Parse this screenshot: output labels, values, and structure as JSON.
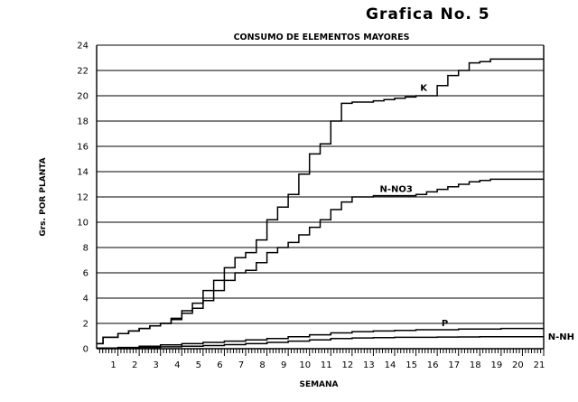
{
  "page_title": "Grafica No. 5",
  "chart_data": {
    "type": "line",
    "title": "CONSUMO DE ELEMENTOS MAYORES",
    "xlabel": "SEMANA",
    "ylabel": "Grs. POR PLANTA",
    "xlim": [
      0,
      21
    ],
    "ylim": [
      0,
      24
    ],
    "x_ticks": [
      1,
      2,
      3,
      4,
      5,
      6,
      7,
      8,
      9,
      10,
      11,
      12,
      13,
      14,
      15,
      16,
      17,
      18,
      19,
      20,
      21
    ],
    "y_ticks": [
      0,
      2,
      4,
      6,
      8,
      10,
      12,
      14,
      16,
      18,
      20,
      22,
      24
    ],
    "grid": "horizontal",
    "legend": "labels on lines",
    "series": [
      {
        "name": "K",
        "x": [
          0,
          0.3,
          0.5,
          1,
          1.5,
          2,
          2.5,
          3,
          3.5,
          4,
          4.5,
          5,
          5.5,
          6,
          6.5,
          7,
          7.5,
          8,
          8.5,
          9,
          9.5,
          10,
          10.5,
          11,
          11.5,
          12,
          12.5,
          13,
          13.5,
          14,
          14.5,
          15,
          15.5,
          16,
          16.5,
          17,
          17.5,
          18,
          18.5,
          19,
          20,
          21
        ],
        "y": [
          0.4,
          0.9,
          0.9,
          1.2,
          1.4,
          1.6,
          1.8,
          2.0,
          2.4,
          3.0,
          3.6,
          4.6,
          5.4,
          6.4,
          7.2,
          7.6,
          8.6,
          10.2,
          11.2,
          12.2,
          13.8,
          15.4,
          16.2,
          18.0,
          19.4,
          19.5,
          19.5,
          19.6,
          19.7,
          19.8,
          19.9,
          20.0,
          20.0,
          20.8,
          21.6,
          22.0,
          22.6,
          22.7,
          22.9,
          22.9,
          22.9,
          22.9
        ]
      },
      {
        "name": "N-NO3",
        "x": [
          0,
          0.3,
          0.5,
          1,
          1.5,
          2,
          2.5,
          3,
          3.5,
          4,
          4.5,
          5,
          5.5,
          6,
          6.5,
          7,
          7.5,
          8,
          8.5,
          9,
          9.5,
          10,
          10.5,
          11,
          11.5,
          12,
          12.5,
          13,
          13.5,
          14,
          14.5,
          15,
          15.5,
          16,
          16.5,
          17,
          17.5,
          18,
          18.5,
          19,
          20,
          21
        ],
        "y": [
          0.4,
          0.9,
          0.9,
          1.2,
          1.4,
          1.6,
          1.8,
          2.0,
          2.3,
          2.8,
          3.2,
          3.8,
          4.6,
          5.4,
          6.0,
          6.2,
          6.8,
          7.6,
          8.0,
          8.4,
          9.0,
          9.6,
          10.2,
          11.0,
          11.6,
          12.0,
          12.0,
          12.1,
          12.1,
          12.1,
          12.1,
          12.2,
          12.4,
          12.6,
          12.8,
          13.0,
          13.2,
          13.3,
          13.4,
          13.4,
          13.4,
          13.4
        ]
      },
      {
        "name": "P",
        "x": [
          0,
          1,
          2,
          3,
          4,
          5,
          6,
          7,
          8,
          9,
          10,
          11,
          12,
          13,
          14,
          15,
          16,
          17,
          18,
          19,
          20,
          21
        ],
        "y": [
          0.05,
          0.1,
          0.2,
          0.3,
          0.4,
          0.5,
          0.6,
          0.7,
          0.8,
          0.95,
          1.1,
          1.25,
          1.35,
          1.4,
          1.45,
          1.5,
          1.5,
          1.55,
          1.55,
          1.6,
          1.6,
          1.6
        ]
      },
      {
        "name": "N-NH",
        "x": [
          0,
          1,
          2,
          3,
          4,
          5,
          6,
          7,
          8,
          9,
          10,
          11,
          12,
          13,
          14,
          15,
          16,
          17,
          18,
          19,
          20,
          21
        ],
        "y": [
          0.02,
          0.05,
          0.1,
          0.15,
          0.2,
          0.25,
          0.32,
          0.4,
          0.5,
          0.6,
          0.7,
          0.8,
          0.85,
          0.88,
          0.9,
          0.9,
          0.92,
          0.93,
          0.95,
          0.95,
          0.95,
          0.95
        ]
      }
    ],
    "annotations": [
      {
        "text": "K",
        "series": "K"
      },
      {
        "text": "N-NO3",
        "series": "N-NO3"
      },
      {
        "text": "P",
        "series": "P"
      },
      {
        "text": "N-NH",
        "series": "N-NH"
      }
    ]
  }
}
